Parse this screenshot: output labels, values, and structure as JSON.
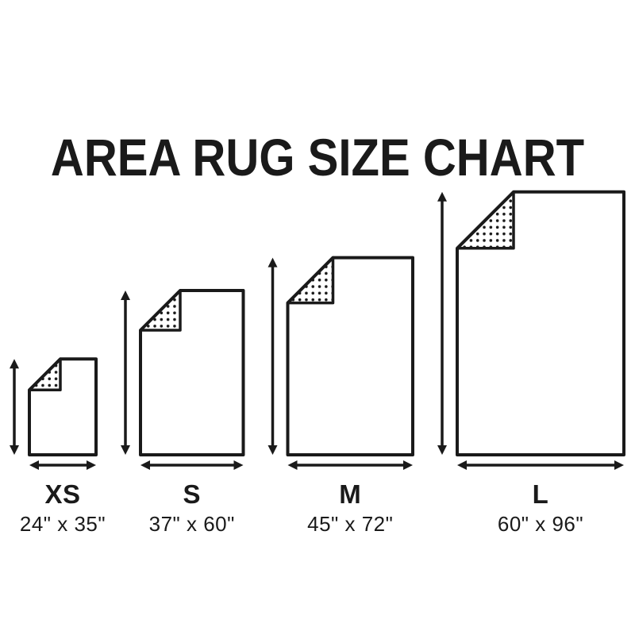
{
  "title": "AREA RUG SIZE CHART",
  "colors": {
    "ink": "#1a1a1a",
    "paper": "#ffffff"
  },
  "rugs": [
    {
      "id": "xs",
      "label": "XS",
      "dimensions": "24\" x 35\"",
      "width_in": 24,
      "length_in": 35
    },
    {
      "id": "s",
      "label": "S",
      "dimensions": "37\" x 60\"",
      "width_in": 37,
      "length_in": 60
    },
    {
      "id": "m",
      "label": "M",
      "dimensions": "45\" x 72\"",
      "width_in": 45,
      "length_in": 72
    },
    {
      "id": "l",
      "label": "L",
      "dimensions": "60\" x 96\"",
      "width_in": 60,
      "length_in": 96
    }
  ]
}
